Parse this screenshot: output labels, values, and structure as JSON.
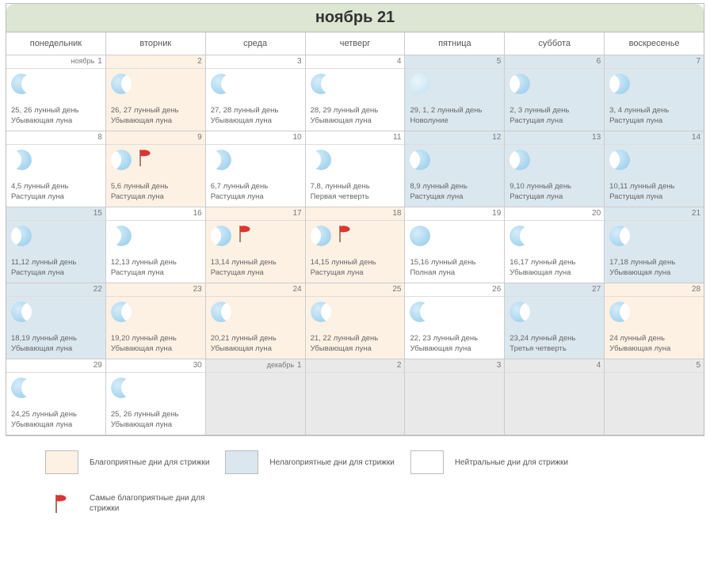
{
  "title": "ноябрь 21",
  "weekdays": [
    "понедельник",
    "вторник",
    "среда",
    "четверг",
    "пятница",
    "суббота",
    "воскресенье"
  ],
  "weeks": [
    [
      {
        "num": "1",
        "month": "ноябрь",
        "class": "neutral",
        "moon": "waning",
        "lunar": "25, 26 лунный день",
        "phase": "Убывающая луна"
      },
      {
        "num": "2",
        "class": "fav",
        "moon": "waning",
        "lunar": "26, 27 лунный день",
        "phase": "Убывающая луна"
      },
      {
        "num": "3",
        "class": "neutral",
        "moon": "waning",
        "lunar": "27, 28 лунный день",
        "phase": "Убывающая луна"
      },
      {
        "num": "4",
        "class": "neutral",
        "moon": "waning",
        "lunar": "28, 29 лунный день",
        "phase": "Убывающая луна"
      },
      {
        "num": "5",
        "class": "unfav",
        "moon": "new",
        "lunar": "29, 1, 2  лунный день",
        "phase": "Новолуние"
      },
      {
        "num": "6",
        "class": "unfav",
        "moon": "waxing",
        "lunar": "2, 3  лунный день",
        "phase": "Растущая луна"
      },
      {
        "num": "7",
        "class": "unfav",
        "moon": "waxing",
        "lunar": "3, 4 лунный день",
        "phase": "Растущая луна"
      }
    ],
    [
      {
        "num": "8",
        "class": "neutral",
        "moon": "waxing",
        "lunar": "4,5  лунный день",
        "phase": "Растущая луна"
      },
      {
        "num": "9",
        "class": "fav",
        "moon": "waxing",
        "flag": true,
        "lunar": "5,6 лунный день",
        "phase": "Растущая луна"
      },
      {
        "num": "10",
        "class": "neutral",
        "moon": "waxing",
        "lunar": "6,7  лунный день",
        "phase": "Растущая луна"
      },
      {
        "num": "11",
        "class": "neutral",
        "moon": "first-q",
        "lunar": "7,8,  лунный день",
        "phase": "Первая четверть"
      },
      {
        "num": "12",
        "class": "unfav",
        "moon": "waxing",
        "lunar": "8,9  лунный день",
        "phase": "Растущая луна"
      },
      {
        "num": "13",
        "class": "unfav",
        "moon": "waxing",
        "lunar": "9,10  лунный день",
        "phase": "Растущая луна"
      },
      {
        "num": "14",
        "class": "unfav",
        "moon": "waxing",
        "lunar": "10,11  лунный день",
        "phase": "Растущая луна"
      }
    ],
    [
      {
        "num": "15",
        "class": "unfav",
        "moon": "waxing",
        "lunar": "11,12  лунный день",
        "phase": "Растущая луна"
      },
      {
        "num": "16",
        "class": "neutral",
        "moon": "waxing",
        "lunar": "12,13  лунный день",
        "phase": "Растущая луна"
      },
      {
        "num": "17",
        "class": "fav",
        "moon": "waxing",
        "flag": true,
        "lunar": "13,14  лунный день",
        "phase": "Растущая луна"
      },
      {
        "num": "18",
        "class": "fav",
        "moon": "waxing",
        "flag": true,
        "lunar": "14,15  лунный день",
        "phase": "Растущая луна"
      },
      {
        "num": "19",
        "class": "neutral",
        "moon": "full",
        "lunar": "15,16  лунный день",
        "phase": "Полная луна"
      },
      {
        "num": "20",
        "class": "neutral",
        "moon": "waning",
        "lunar": "16,17  лунный день",
        "phase": "Убывающая луна"
      },
      {
        "num": "21",
        "class": "unfav",
        "moon": "waning",
        "lunar": "17,18  лунный день",
        "phase": "Убывающая луна"
      }
    ],
    [
      {
        "num": "22",
        "class": "unfav",
        "moon": "waning",
        "lunar": "18,19  лунный день",
        "phase": "Убывающая луна"
      },
      {
        "num": "23",
        "class": "fav",
        "moon": "waning",
        "lunar": "19,20  лунный день",
        "phase": "Убывающая луна"
      },
      {
        "num": "24",
        "class": "fav",
        "moon": "waning",
        "lunar": "20,21  лунный день",
        "phase": "Убывающая луна"
      },
      {
        "num": "25",
        "class": "fav",
        "moon": "waning",
        "lunar": "21, 22  лунный день",
        "phase": "Убывающая луна"
      },
      {
        "num": "26",
        "class": "neutral",
        "moon": "waning",
        "lunar": "22, 23  лунный день",
        "phase": "Убывающая луна"
      },
      {
        "num": "27",
        "class": "unfav",
        "moon": "third-q",
        "lunar": "23,24  лунный день",
        "phase": "Третья четверть"
      },
      {
        "num": "28",
        "class": "fav",
        "moon": "waning",
        "lunar": "24  лунный день",
        "phase": "Убывающая луна"
      }
    ],
    [
      {
        "num": "29",
        "class": "neutral",
        "moon": "waning",
        "lunar": "24,25 лунный день",
        "phase": "Убывающая луна"
      },
      {
        "num": "30",
        "class": "neutral",
        "moon": "waning",
        "lunar": "25, 26 лунный день",
        "phase": "Убывающая луна"
      },
      {
        "num": "1",
        "month": "декабрь",
        "class": "empty"
      },
      {
        "num": "2",
        "class": "empty"
      },
      {
        "num": "3",
        "class": "empty"
      },
      {
        "num": "4",
        "class": "empty"
      },
      {
        "num": "5",
        "class": "empty"
      }
    ]
  ],
  "legend": {
    "fav": "Благоприятные дни для стрижки",
    "unfav": "Нелагоприятные дни для стрижки",
    "neutral": "Нейтральные дни для стрижки",
    "flag": "Самые  благоприятные дни для стрижки"
  },
  "colors": {
    "fav": "#fdf1e4",
    "unfav": "#dbe7ee",
    "neutral": "#ffffff",
    "header_bg": "#dce6d2"
  }
}
